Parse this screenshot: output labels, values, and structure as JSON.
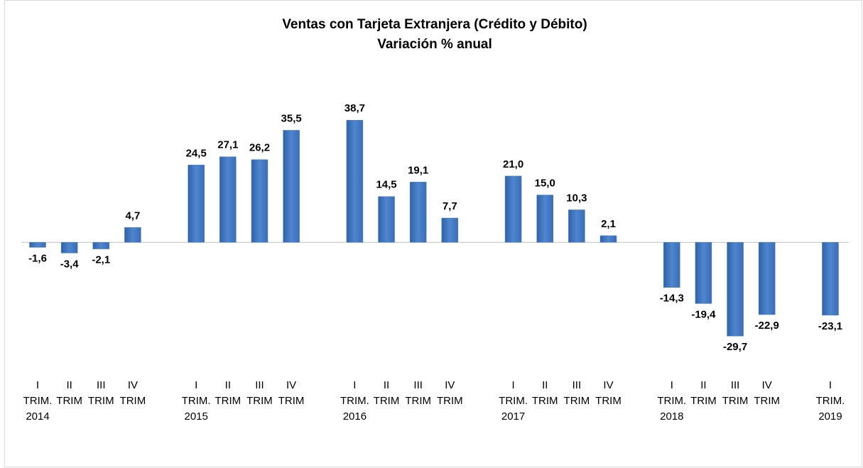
{
  "chart_data": {
    "type": "bar",
    "title": "Ventas con Tarjeta Extranjera (Crédito y Débito)",
    "subtitle": "Variación % anual",
    "categories": [
      "I\nTRIM.\n2014",
      "II\nTRIM",
      "III\nTRIM",
      "IV\nTRIM",
      null,
      "I\nTRIM.\n2015",
      "II\nTRIM",
      "III\nTRIM",
      "IV\nTRIM",
      null,
      "I\nTRIM.\n2016",
      "II\nTRIM",
      "III\nTRIM",
      "IV\nTRIM",
      null,
      "I\nTRIM.\n2017",
      "II\nTRIM",
      "III\nTRIM",
      "IV\nTRIM",
      null,
      "I\nTRIM.\n2018",
      "II\nTRIM",
      "III\nTRIM",
      "IV\nTRIM",
      null,
      "I\nTRIM.\n2019"
    ],
    "values": [
      -1.6,
      -3.4,
      -2.1,
      4.7,
      null,
      24.5,
      27.1,
      26.2,
      35.5,
      null,
      38.7,
      14.5,
      19.1,
      7.7,
      null,
      21.0,
      15.0,
      10.3,
      2.1,
      null,
      -14.3,
      -19.4,
      -29.7,
      -22.9,
      null,
      -23.1
    ],
    "value_labels": [
      "-1,6",
      "-3,4",
      "-2,1",
      "4,7",
      null,
      "24,5",
      "27,1",
      "26,2",
      "35,5",
      null,
      "38,7",
      "14,5",
      "19,1",
      "7,7",
      null,
      "21,0",
      "15,0",
      "10,3",
      "2,1",
      null,
      "-14,3",
      "-19,4",
      "-29,7",
      "-22,9",
      null,
      "-23,1"
    ],
    "color": "#4a7ebf",
    "ylim": [
      -40,
      50
    ]
  }
}
